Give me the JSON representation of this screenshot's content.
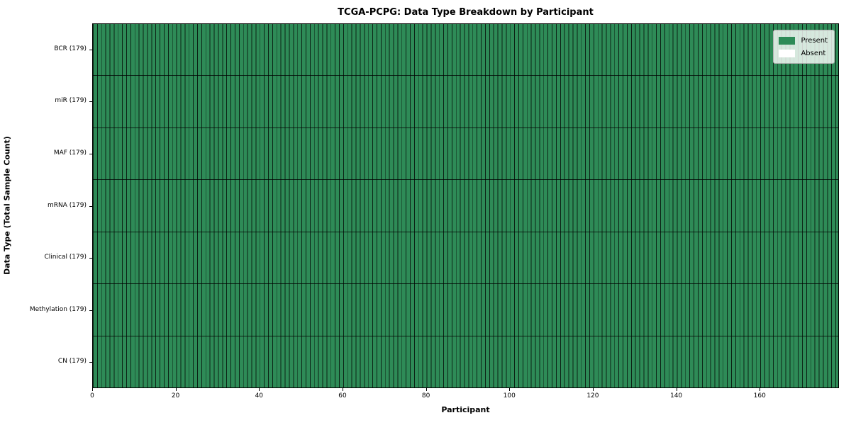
{
  "chart_data": {
    "type": "heatmap",
    "title": "TCGA-PCPG: Data Type Breakdown by Participant",
    "xlabel": "Participant",
    "ylabel": "Data Type (Total Sample Count)",
    "n_participants": 179,
    "x_range": [
      0,
      179
    ],
    "x_ticks": [
      0,
      20,
      40,
      60,
      80,
      100,
      120,
      140,
      160
    ],
    "rows": [
      {
        "label": "BCR (179)",
        "name": "BCR",
        "total": 179,
        "present_count": 179,
        "absent_count": 0
      },
      {
        "label": "miR (179)",
        "name": "miR",
        "total": 179,
        "present_count": 179,
        "absent_count": 0
      },
      {
        "label": "MAF (179)",
        "name": "MAF",
        "total": 179,
        "present_count": 179,
        "absent_count": 0
      },
      {
        "label": "mRNA (179)",
        "name": "mRNA",
        "total": 179,
        "present_count": 179,
        "absent_count": 0
      },
      {
        "label": "Clinical (179)",
        "name": "Clinical",
        "total": 179,
        "present_count": 179,
        "absent_count": 0
      },
      {
        "label": "Methylation (179)",
        "name": "Methylation",
        "total": 179,
        "present_count": 179,
        "absent_count": 0
      },
      {
        "label": "CN (179)",
        "name": "CN",
        "total": 179,
        "present_count": 179,
        "absent_count": 0
      }
    ],
    "legend": [
      {
        "label": "Present",
        "color": "#2e8b57"
      },
      {
        "label": "Absent",
        "color": "#ffffff"
      }
    ],
    "colors": {
      "present": "#2e8b57",
      "absent": "#ffffff",
      "cell_edge": "rgba(0,0,0,0.75)"
    },
    "legend_position": "upper right",
    "grid": "cell-borders"
  }
}
